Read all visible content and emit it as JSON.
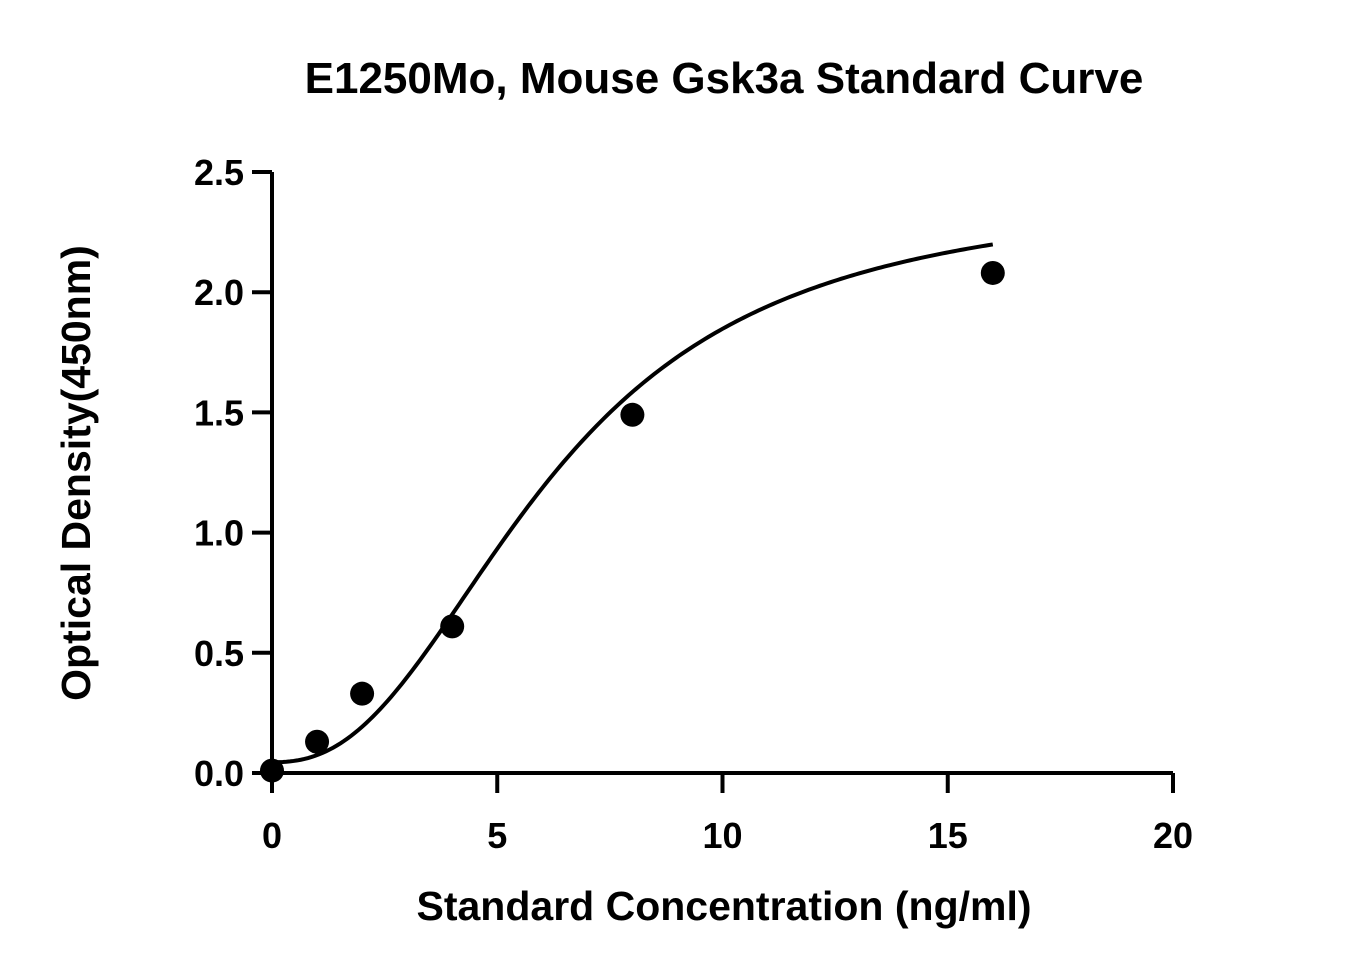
{
  "chart_data": {
    "type": "scatter",
    "title": "E1250Mo, Mouse Gsk3a Standard Curve",
    "xlabel": "Standard Concentration (ng/ml)",
    "ylabel": "Optical Density(450nm)",
    "xlim": [
      0,
      20
    ],
    "ylim": [
      0,
      2.5
    ],
    "x_ticks": [
      0,
      5,
      10,
      15,
      20
    ],
    "y_ticks": [
      0.0,
      0.5,
      1.0,
      1.5,
      2.0,
      2.5
    ],
    "x_tick_labels": [
      "0",
      "5",
      "10",
      "15",
      "20"
    ],
    "y_tick_labels": [
      "0.0",
      "0.5",
      "1.0",
      "1.5",
      "2.0",
      "2.5"
    ],
    "grid": false,
    "series": [
      {
        "x": [
          0,
          1,
          2,
          4,
          8,
          16
        ],
        "y": [
          0.01,
          0.13,
          0.33,
          0.61,
          1.49,
          2.08
        ]
      }
    ],
    "fit_curve": {
      "model": "4PL",
      "a": 0.045,
      "b": 2.4,
      "c": 6.2,
      "d": 2.42,
      "x_range": [
        0,
        16
      ]
    }
  }
}
